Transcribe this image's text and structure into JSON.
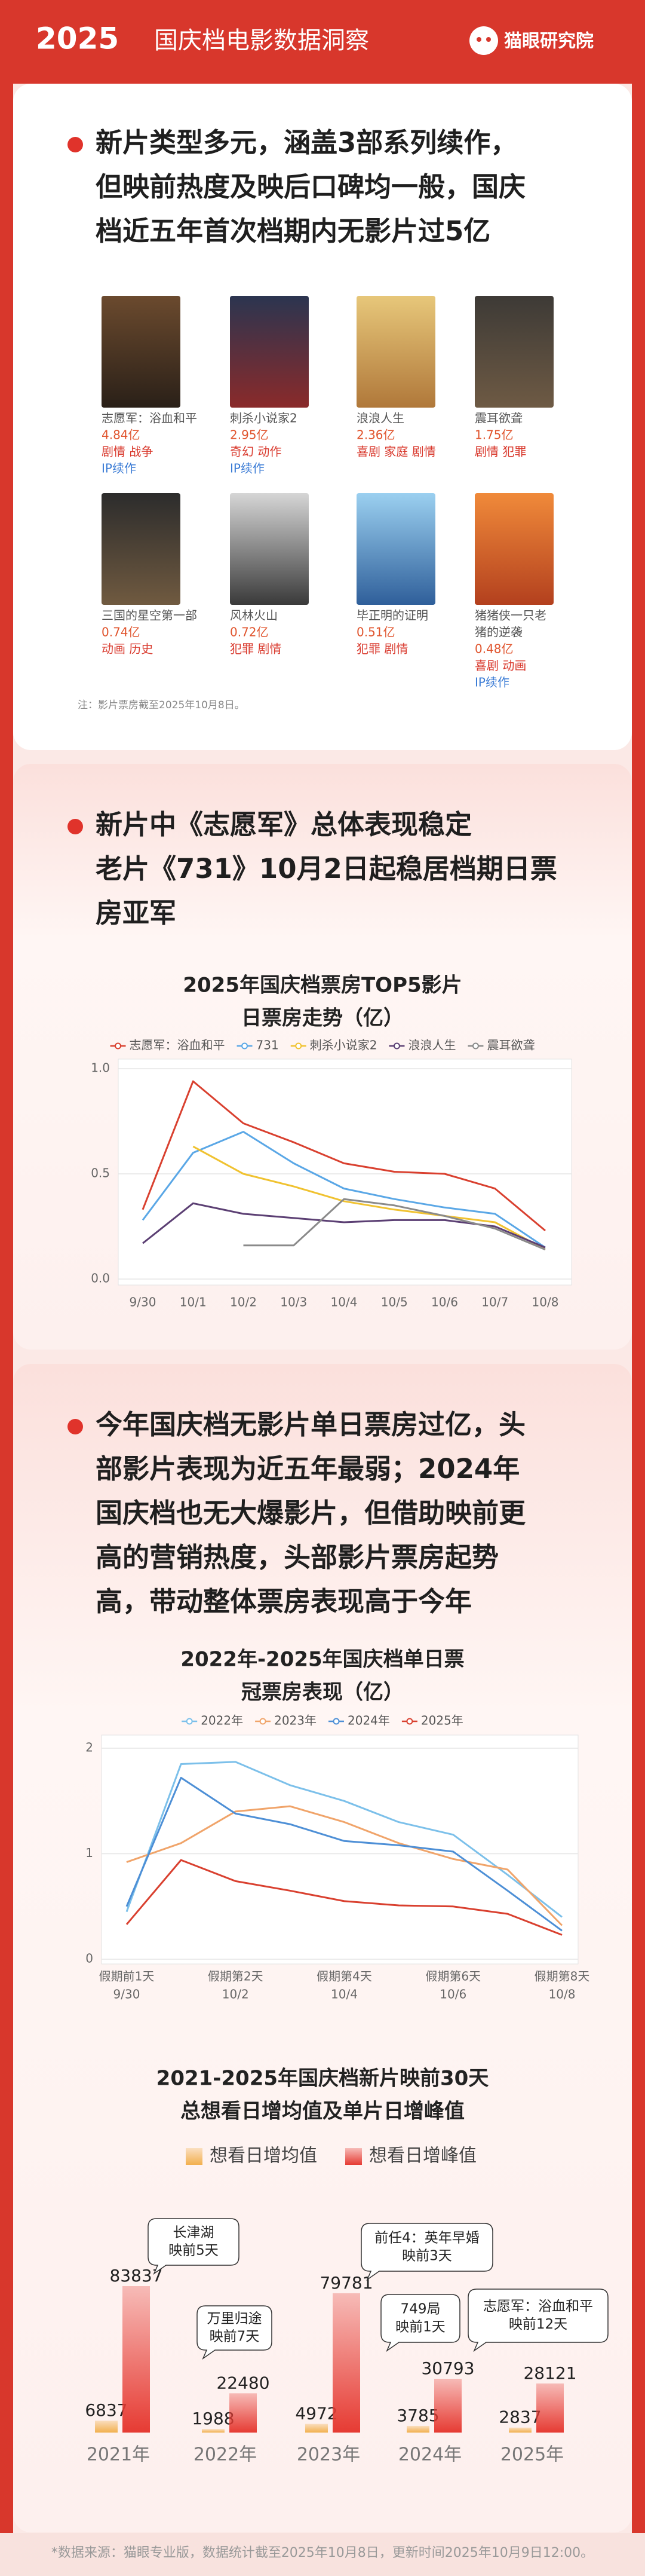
{
  "header": {
    "year": "2025",
    "title": "国庆档电影数据洞察",
    "brand": "猫眼研究院"
  },
  "section1": {
    "heading": [
      "新片类型多元，涵盖3部系列续作，",
      "但映前热度及映后口碑均一般，国庆",
      "档近五年首次档期内无影片过5亿"
    ],
    "movies": [
      {
        "name": [
          "志愿军：浴血和平"
        ],
        "box_office": "4.84亿",
        "genres": "剧情 战争",
        "tag": "IP续作"
      },
      {
        "name": [
          "刺杀小说家2"
        ],
        "box_office": "2.95亿",
        "genres": "奇幻 动作",
        "tag": "IP续作"
      },
      {
        "name": [
          "浪浪人生"
        ],
        "box_office": "2.36亿",
        "genres": "喜剧 家庭 剧情"
      },
      {
        "name": [
          "震耳欲聋"
        ],
        "box_office": "1.75亿",
        "genres": "剧情 犯罪"
      },
      {
        "name": [
          "三国的星空第一部"
        ],
        "box_office": "0.74亿",
        "genres": "动画 历史"
      },
      {
        "name": [
          "风林火山"
        ],
        "box_office": "0.72亿",
        "genres": "犯罪 剧情"
      },
      {
        "name": [
          "毕正明的证明"
        ],
        "box_office": "0.51亿",
        "genres": "犯罪 剧情"
      },
      {
        "name": [
          "猪猪侠一只老",
          "猪的逆袭"
        ],
        "box_office": "0.48亿",
        "genres": "喜剧 动画",
        "tag": "IP续作"
      }
    ],
    "note": "注：影片票房截至2025年10月8日。"
  },
  "section2": {
    "heading": [
      "新片中《志愿军》总体表现稳定",
      "老片《731》10月2日起稳居档期日票",
      "房亚军"
    ]
  },
  "section3": {
    "heading": [
      "今年国庆档无影片单日票房过亿，头",
      "部影片表现为近五年最弱；2024年",
      "国庆档也无大爆影片，但借助映前更",
      "高的营销热度，头部影片票房起势",
      "高，带动整体票房表现高于今年"
    ]
  },
  "chart_data": [
    {
      "type": "line",
      "title": [
        "2025年国庆档票房TOP5影片",
        "日票房走势（亿）"
      ],
      "categories": [
        "9/30",
        "10/1",
        "10/2",
        "10/3",
        "10/4",
        "10/5",
        "10/6",
        "10/7",
        "10/8"
      ],
      "series": [
        {
          "name": "志愿军：浴血和平",
          "color": "#d9402f",
          "values": [
            0.33,
            0.94,
            0.74,
            0.65,
            0.55,
            0.51,
            0.5,
            0.43,
            0.23
          ]
        },
        {
          "name": "731",
          "color": "#5aa7e6",
          "values": [
            0.28,
            0.6,
            0.7,
            0.55,
            0.43,
            0.38,
            0.34,
            0.31,
            0.15
          ]
        },
        {
          "name": "刺杀小说家2",
          "color": "#f0c230",
          "values": [
            null,
            0.63,
            0.5,
            0.44,
            0.37,
            0.33,
            0.3,
            0.27,
            0.14
          ]
        },
        {
          "name": "浪浪人生",
          "color": "#5b3f73",
          "values": [
            0.17,
            0.36,
            0.31,
            0.29,
            0.27,
            0.28,
            0.28,
            0.25,
            0.15
          ]
        },
        {
          "name": "震耳欲聋",
          "color": "#8a8a8a",
          "values": [
            null,
            null,
            0.16,
            0.16,
            0.38,
            0.35,
            0.3,
            0.24,
            0.14
          ]
        }
      ],
      "ylim": [
        0,
        1
      ],
      "yticks": [
        {
          "value": 0,
          "label": "0.0"
        },
        {
          "value": 0.5,
          "label": "0.5"
        },
        {
          "value": 1,
          "label": "1.0"
        }
      ],
      "grid": true,
      "legend": "top"
    },
    {
      "type": "line",
      "title": [
        "2022年-2025年国庆档单日票",
        "冠票房表现（亿）"
      ],
      "categories": [
        "假期前1天",
        null,
        "假期第2天",
        null,
        "假期第4天",
        null,
        "假期第6天",
        null,
        "假期第8天"
      ],
      "category_dates": [
        "9/30",
        null,
        "10/2",
        null,
        "10/4",
        null,
        "10/6",
        null,
        "10/8"
      ],
      "series": [
        {
          "name": "2022年",
          "color": "#7cc0ea",
          "values": [
            0.45,
            1.85,
            1.87,
            1.65,
            1.5,
            1.3,
            1.18,
            0.8,
            0.4
          ]
        },
        {
          "name": "2023年",
          "color": "#f0a46a",
          "values": [
            0.92,
            1.1,
            1.4,
            1.45,
            1.3,
            1.1,
            0.95,
            0.85,
            0.32
          ]
        },
        {
          "name": "2024年",
          "color": "#4d8fd6",
          "values": [
            0.5,
            1.72,
            1.38,
            1.28,
            1.12,
            1.08,
            1.02,
            0.65,
            0.27
          ]
        },
        {
          "name": "2025年",
          "color": "#d9402f",
          "values": [
            0.33,
            0.94,
            0.74,
            0.65,
            0.55,
            0.51,
            0.5,
            0.43,
            0.23
          ]
        }
      ],
      "ylim": [
        0,
        2
      ],
      "yticks": [
        0,
        1,
        2
      ],
      "grid": true,
      "legend": "top"
    },
    {
      "type": "bar",
      "title": [
        "2021-2025年国庆档新片映前30天",
        "总想看日增均值及单片日增峰值"
      ],
      "categories": [
        "2021年",
        "2022年",
        "2023年",
        "2024年",
        "2025年"
      ],
      "series": [
        {
          "name": "想看日增均值",
          "color": "#f2b04e",
          "values": [
            6837,
            1988,
            4972,
            3785,
            2837
          ]
        },
        {
          "name": "想看日增峰值",
          "color": "#e63b33",
          "values": [
            83837,
            22480,
            79781,
            30793,
            28121
          ]
        }
      ],
      "annotations": [
        [
          "长津湖",
          "映前5天"
        ],
        [
          "万里归途",
          "映前7天"
        ],
        [
          "前任4：英年早婚",
          "映前3天"
        ],
        [
          "749局",
          "映前1天"
        ],
        [
          "志愿军：浴血和平",
          "映前12天"
        ]
      ],
      "legend": "top"
    }
  ],
  "footer": "*数据来源：猫眼专业版，数据统计截至2025年10月8日，更新时间2025年10月9日12:00。"
}
